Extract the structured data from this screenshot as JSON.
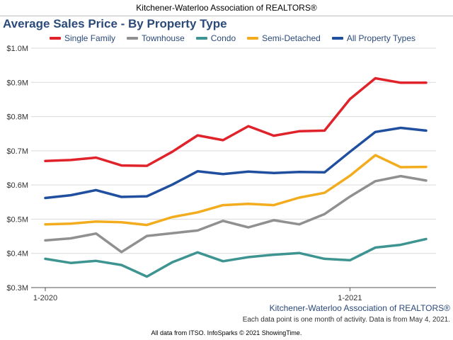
{
  "header": {
    "organization": "Kitchener-Waterloo Association of REALTORS®",
    "source_label": "Kitchener-Waterloo Association of REALTORS®",
    "note": "Each data point is one month of activity. Data is from May 4, 2021.",
    "footer": "All data from ITSO. InfoSparks © 2021 ShowingTime."
  },
  "chart_data": {
    "type": "line",
    "title": "Average Sales Price - By Property Type",
    "xlabel": "",
    "ylabel": "",
    "x": [
      "2020-01",
      "2020-02",
      "2020-03",
      "2020-04",
      "2020-05",
      "2020-06",
      "2020-07",
      "2020-08",
      "2020-09",
      "2020-10",
      "2020-11",
      "2020-12",
      "2021-01",
      "2021-02",
      "2021-03",
      "2021-04"
    ],
    "x_tick_labels": [
      {
        "index": 0,
        "label": "1-2020"
      },
      {
        "index": 12,
        "label": "1-2021"
      }
    ],
    "ylim": [
      0.3,
      1.0
    ],
    "y_ticks": [
      {
        "value": 1.0,
        "label": "$1.0M"
      },
      {
        "value": 0.9,
        "label": "$0.9M"
      },
      {
        "value": 0.8,
        "label": "$0.8M"
      },
      {
        "value": 0.7,
        "label": "$0.7M"
      },
      {
        "value": 0.6,
        "label": "$0.6M"
      },
      {
        "value": 0.5,
        "label": "$0.5M"
      },
      {
        "value": 0.4,
        "label": "$0.4M"
      },
      {
        "value": 0.3,
        "label": "$0.3M"
      }
    ],
    "grid": true,
    "legend_position": "top",
    "series": [
      {
        "name": "Single Family",
        "color": "#e0232b",
        "values": [
          0.67,
          0.673,
          0.68,
          0.657,
          0.656,
          0.697,
          0.745,
          0.731,
          0.772,
          0.744,
          0.757,
          0.759,
          0.851,
          0.912,
          0.899,
          0.899
        ]
      },
      {
        "name": "Townhouse",
        "color": "#909090",
        "values": [
          0.438,
          0.444,
          0.458,
          0.404,
          0.451,
          0.459,
          0.467,
          0.495,
          0.476,
          0.497,
          0.485,
          0.515,
          0.566,
          0.611,
          0.626,
          0.613
        ]
      },
      {
        "name": "Condo",
        "color": "#3e9490",
        "values": [
          0.384,
          0.372,
          0.378,
          0.366,
          0.332,
          0.374,
          0.403,
          0.377,
          0.389,
          0.396,
          0.401,
          0.384,
          0.38,
          0.417,
          0.425,
          0.442
        ]
      },
      {
        "name": "Semi-Detached",
        "color": "#f2ac1e",
        "values": [
          0.485,
          0.487,
          0.493,
          0.491,
          0.483,
          0.506,
          0.52,
          0.541,
          0.545,
          0.541,
          0.563,
          0.577,
          0.627,
          0.687,
          0.652,
          0.653
        ]
      },
      {
        "name": "All Property Types",
        "color": "#1f4f9e",
        "values": [
          0.562,
          0.57,
          0.585,
          0.565,
          0.567,
          0.601,
          0.64,
          0.632,
          0.639,
          0.635,
          0.638,
          0.637,
          0.697,
          0.755,
          0.767,
          0.759
        ]
      }
    ]
  }
}
